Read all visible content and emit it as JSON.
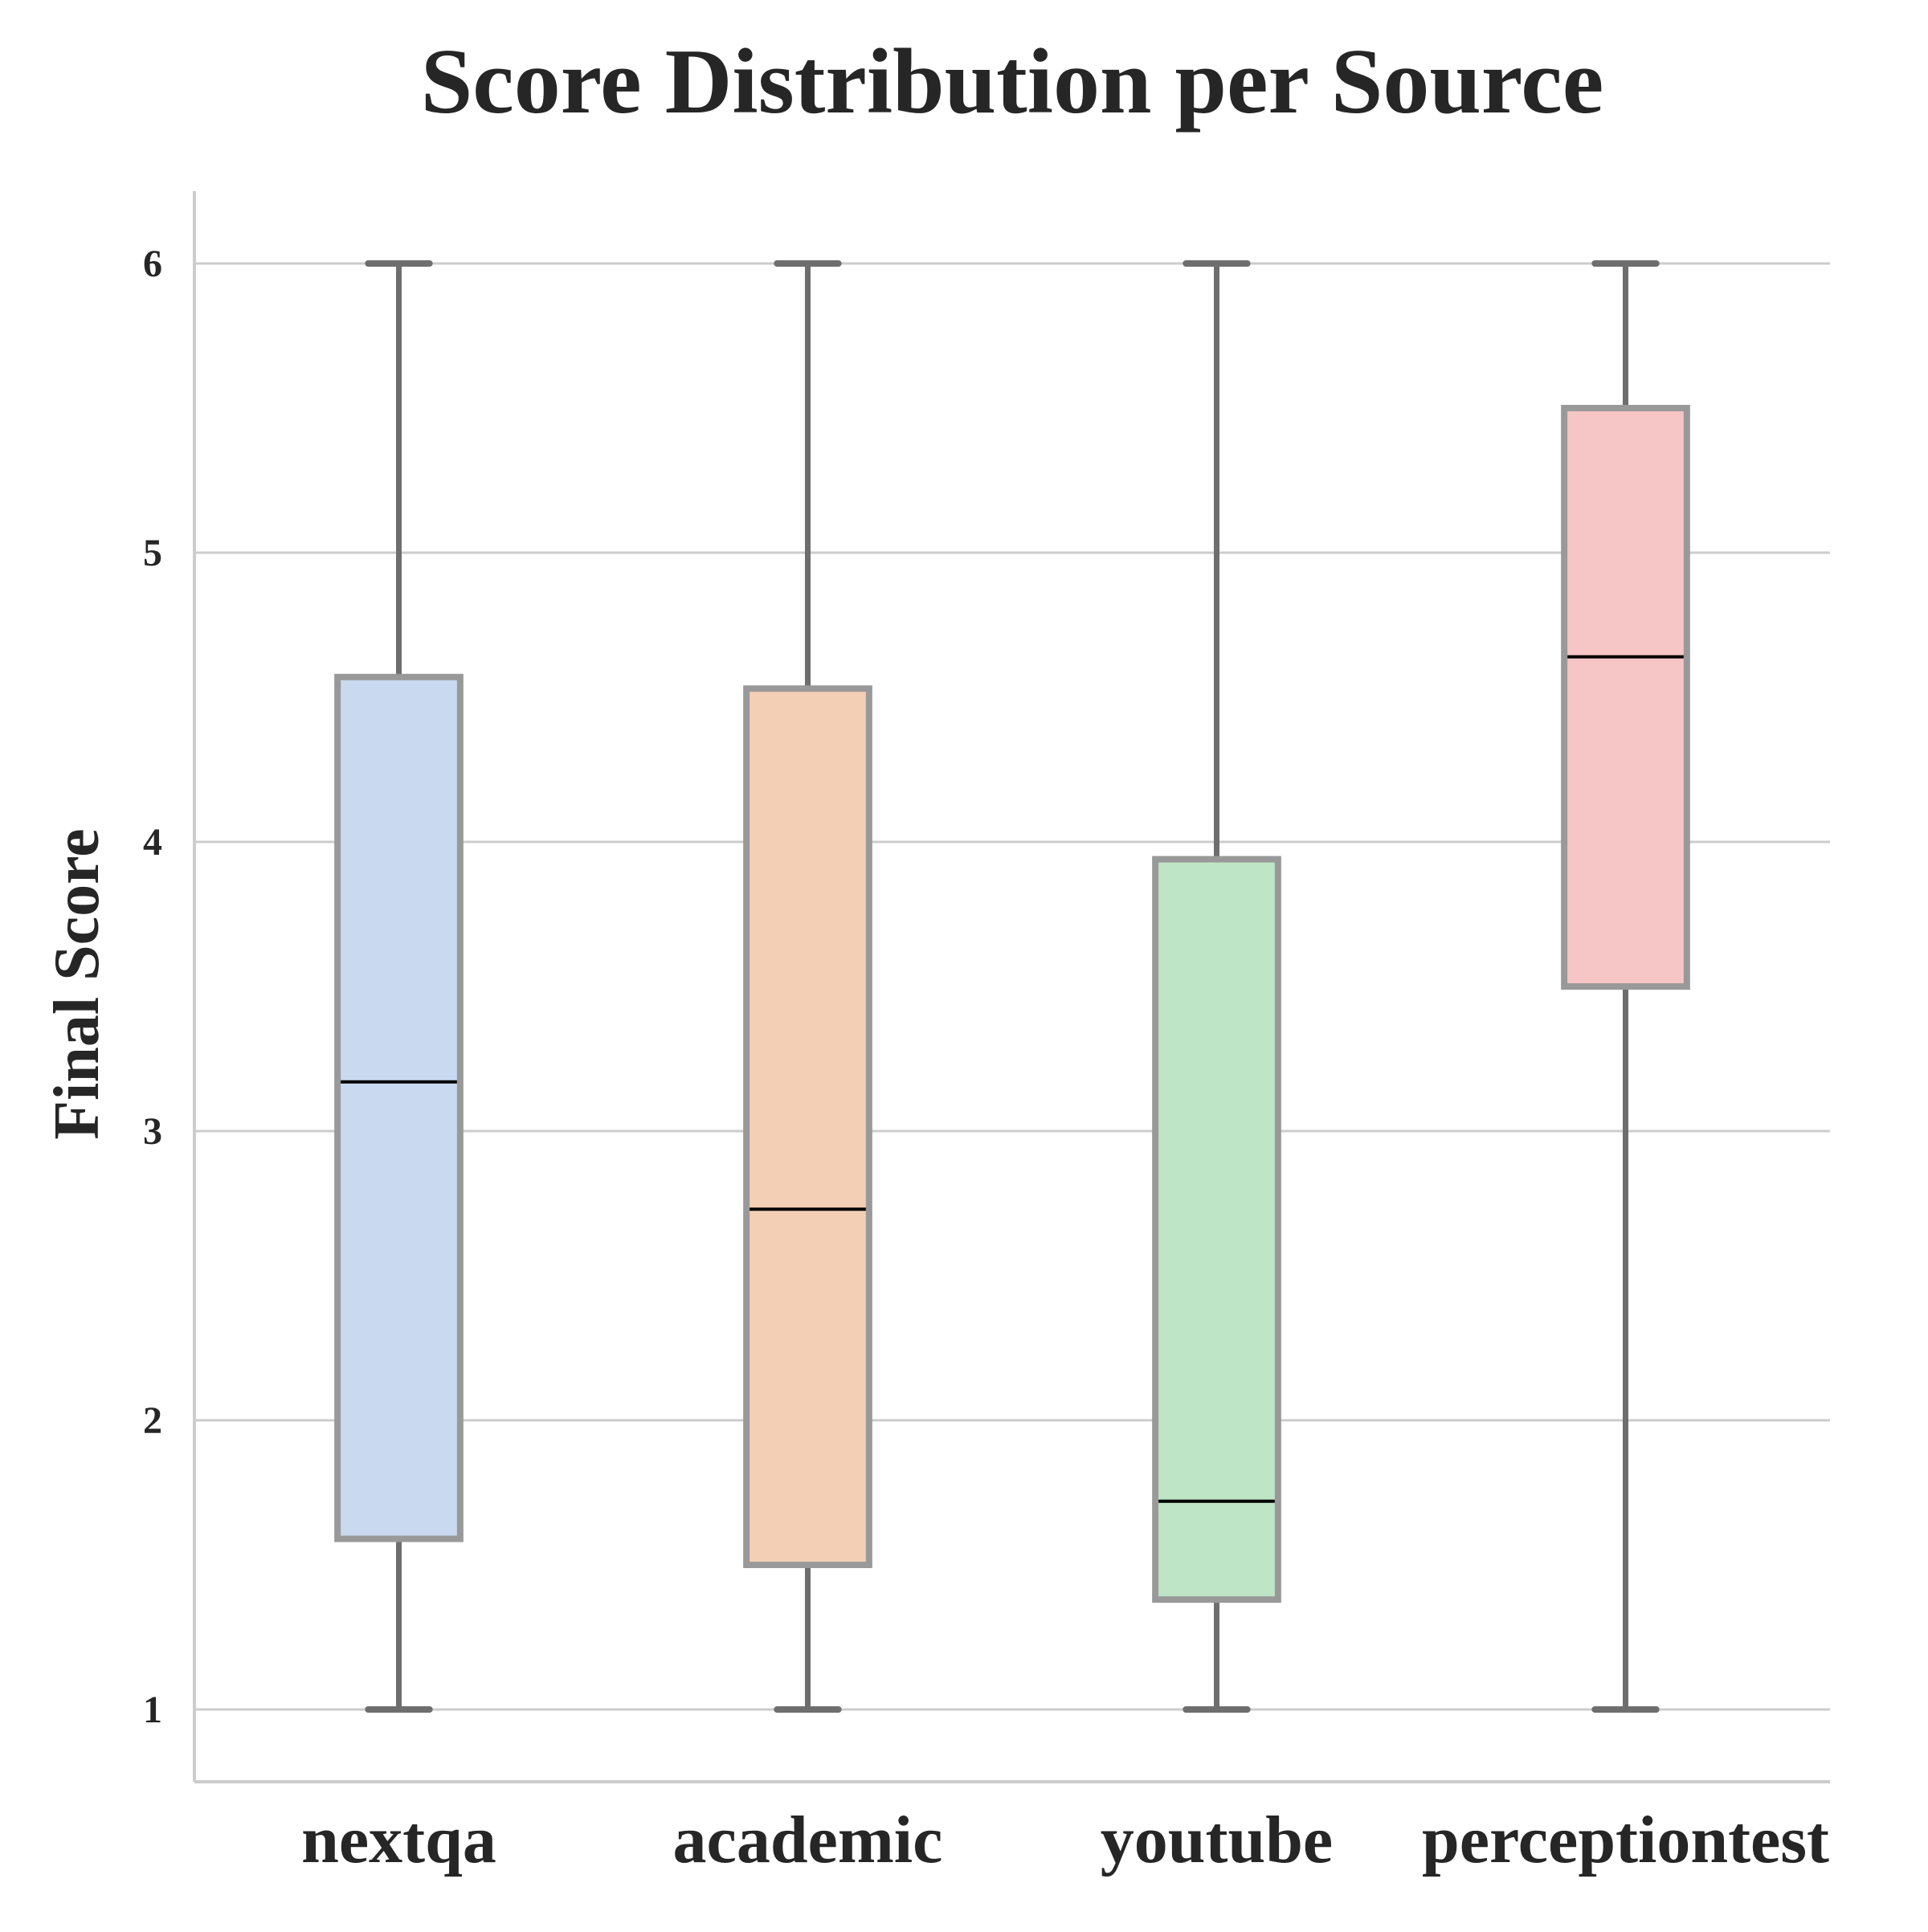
{
  "chart_data": {
    "type": "box",
    "title": "Score Distribution per Source",
    "xlabel": "",
    "ylabel": "Final Score",
    "ylim": [
      0.75,
      6.25
    ],
    "yticks": [
      1,
      2,
      3,
      4,
      5,
      6
    ],
    "grid": "horizontal",
    "categories": [
      "nextqa",
      "academic",
      "youtube",
      "perceptiontest"
    ],
    "boxes": [
      {
        "category": "nextqa",
        "min": 1,
        "q1": 1.59,
        "median": 3.17,
        "q3": 4.57,
        "max": 6,
        "color": "#c9daf0"
      },
      {
        "category": "academic",
        "min": 1,
        "q1": 1.5,
        "median": 2.73,
        "q3": 4.53,
        "max": 6,
        "color": "#f3cfb6"
      },
      {
        "category": "youtube",
        "min": 1,
        "q1": 1.38,
        "median": 1.72,
        "q3": 3.94,
        "max": 6,
        "color": "#bde5c6"
      },
      {
        "category": "perceptiontest",
        "min": 1,
        "q1": 3.5,
        "median": 4.64,
        "q3": 5.5,
        "max": 6,
        "color": "#f6c5c5"
      }
    ],
    "colors": {
      "whisker": "#6e6e6e",
      "box_edge": "#999999",
      "median": "#000000",
      "grid": "#cccccc",
      "axis": "#cccccc"
    }
  }
}
